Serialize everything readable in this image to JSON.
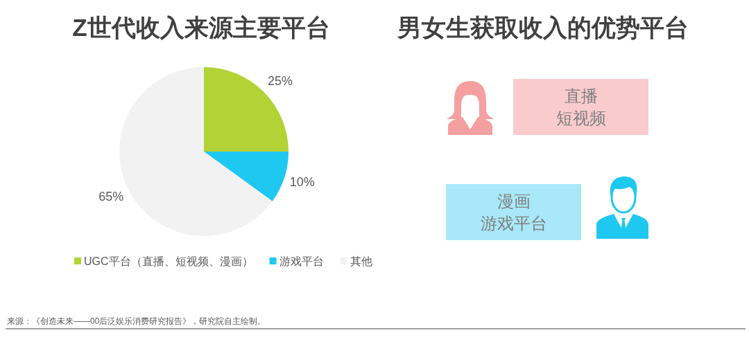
{
  "chart_data": [
    {
      "type": "pie",
      "title": "Z世代收入来源主要平台",
      "categories": [
        "UGC平台（直播、短视频、漫画）",
        "游戏平台",
        "其他"
      ],
      "values": [
        25,
        10,
        65
      ],
      "value_labels": [
        "25%",
        "10%",
        "65%"
      ],
      "colors": [
        "#b2d235",
        "#1fc8f0",
        "#f2f2f2"
      ],
      "legend": "bottom",
      "annotations": [
        "来源：《创造未来——00后泛娱乐消费研究报告》，研究院自主绘制。"
      ]
    },
    {
      "type": "other",
      "title": "男女生获取收入的优势平台",
      "annotations": [
        "直播",
        "短视频",
        "漫画",
        "游戏平台"
      ]
    }
  ]
}
